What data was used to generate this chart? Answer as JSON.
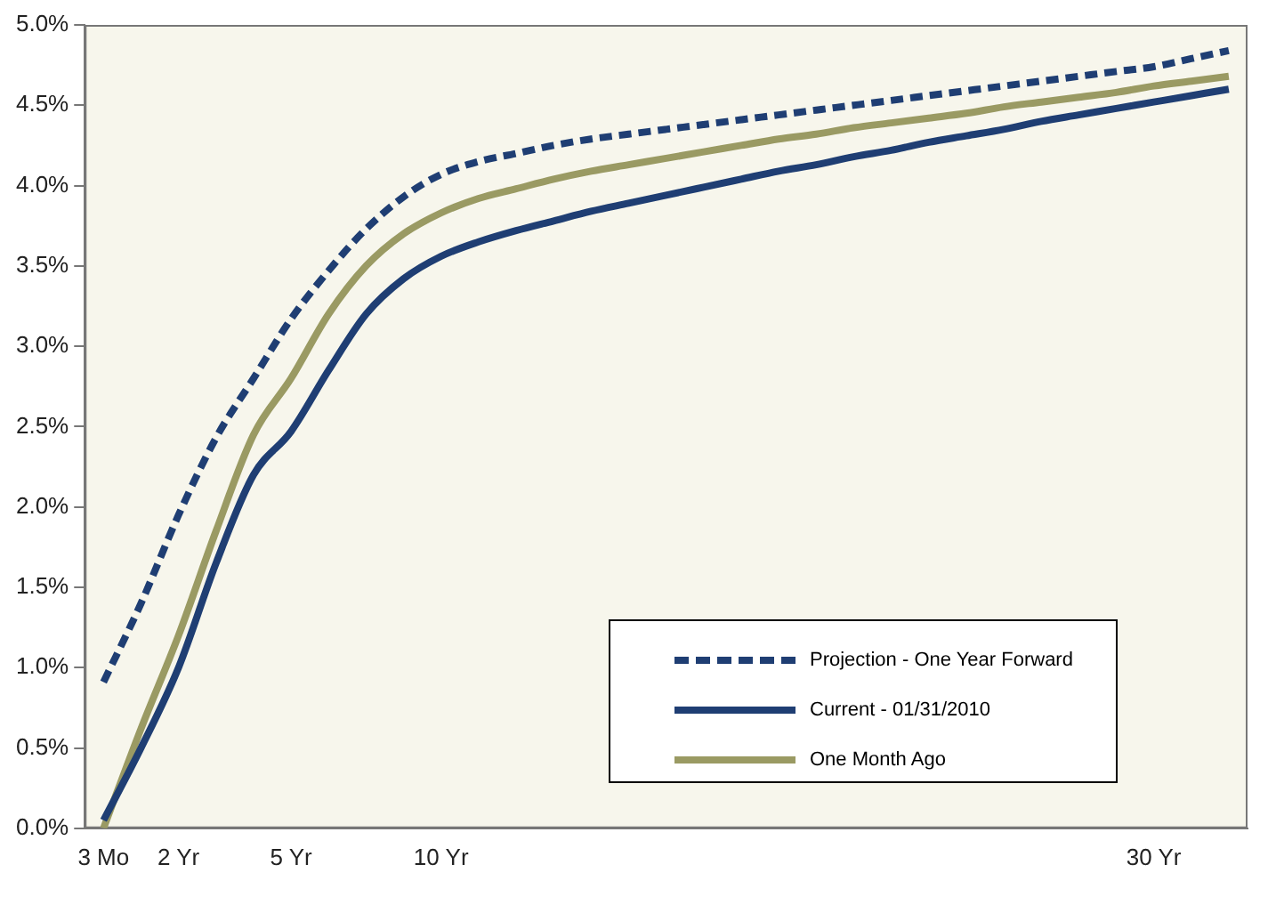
{
  "chart_data": {
    "type": "line",
    "categories": [
      "3 Mo",
      null,
      "2 Yr",
      null,
      null,
      "5 Yr",
      null,
      null,
      null,
      "10 Yr",
      null,
      null,
      null,
      null,
      null,
      null,
      null,
      null,
      null,
      null,
      null,
      null,
      null,
      null,
      null,
      null,
      null,
      null,
      "30 Yr",
      null,
      null
    ],
    "series": [
      {
        "name": "Projection - One Year Forward",
        "color": "#1f3e73",
        "line_style": "dashed",
        "values": [
          0.91,
          1.4,
          1.95,
          2.43,
          2.8,
          3.17,
          3.47,
          3.73,
          3.93,
          4.07,
          4.15,
          4.2,
          4.25,
          4.29,
          4.32,
          4.35,
          4.38,
          4.41,
          4.44,
          4.47,
          4.5,
          4.53,
          4.56,
          4.59,
          4.62,
          4.65,
          4.68,
          4.71,
          4.74,
          4.79,
          4.84
        ]
      },
      {
        "name": "Current - 01/31/2010",
        "color": "#1f3e73",
        "line_style": "solid",
        "values": [
          0.05,
          0.5,
          1.0,
          1.65,
          2.2,
          2.47,
          2.85,
          3.2,
          3.42,
          3.56,
          3.65,
          3.72,
          3.78,
          3.84,
          3.89,
          3.94,
          3.99,
          4.04,
          4.09,
          4.13,
          4.18,
          4.22,
          4.27,
          4.31,
          4.35,
          4.4,
          4.44,
          4.48,
          4.52,
          4.56,
          4.6
        ]
      },
      {
        "name": "One Month Ago",
        "color": "#9a9a63",
        "line_style": "solid",
        "values": [
          0.0,
          0.62,
          1.2,
          1.85,
          2.45,
          2.8,
          3.2,
          3.5,
          3.7,
          3.83,
          3.92,
          3.98,
          4.04,
          4.09,
          4.13,
          4.17,
          4.21,
          4.25,
          4.29,
          4.32,
          4.36,
          4.39,
          4.42,
          4.45,
          4.49,
          4.52,
          4.55,
          4.58,
          4.62,
          4.65,
          4.68
        ]
      }
    ],
    "ylim": [
      0,
      5
    ],
    "yticks": [
      {
        "value": 0,
        "label": "0.0%"
      },
      {
        "value": 0.5,
        "label": "0.5%"
      },
      {
        "value": 1,
        "label": "1.0%"
      },
      {
        "value": 1.5,
        "label": "1.5%"
      },
      {
        "value": 2,
        "label": "2.0%"
      },
      {
        "value": 2.5,
        "label": "2.5%"
      },
      {
        "value": 3,
        "label": "3.0%"
      },
      {
        "value": 3.5,
        "label": "3.5%"
      },
      {
        "value": 4,
        "label": "4.0%"
      },
      {
        "value": 4.5,
        "label": "4.5%"
      },
      {
        "value": 5,
        "label": "5.0%"
      }
    ],
    "grid": false,
    "legend": "bottom right",
    "marker": "none"
  }
}
